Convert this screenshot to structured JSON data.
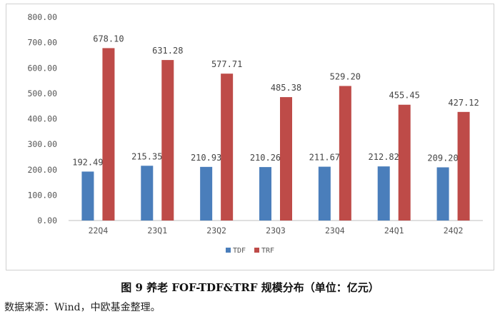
{
  "chart_data": {
    "type": "bar",
    "categories": [
      "22Q4",
      "23Q1",
      "23Q2",
      "23Q3",
      "23Q4",
      "24Q1",
      "24Q2"
    ],
    "series": [
      {
        "name": "TDF",
        "values": [
          192.49,
          215.35,
          210.93,
          210.26,
          211.67,
          212.82,
          209.2
        ],
        "labels": [
          "192.49",
          "215.35",
          "210.93",
          "210.26",
          "211.67",
          "212.82",
          "209.20"
        ],
        "color": "#4a7ebb"
      },
      {
        "name": "TRF",
        "values": [
          678.1,
          631.28,
          577.71,
          485.38,
          529.2,
          455.45,
          427.12
        ],
        "labels": [
          "678.10",
          "631.28",
          "577.71",
          "485.38",
          "529.20",
          "455.45",
          "427.12"
        ],
        "color": "#be4b48"
      }
    ],
    "ylim": [
      0,
      800
    ],
    "yticks": [
      "0.00",
      "100.00",
      "200.00",
      "300.00",
      "400.00",
      "500.00",
      "600.00",
      "700.00",
      "800.00"
    ],
    "legend_position": "bottom"
  },
  "caption": "图 9  养老 FOF-TDF&TRF 规模分布（单位：亿元）",
  "source": "数据来源：Wind，中欧基金整理。"
}
